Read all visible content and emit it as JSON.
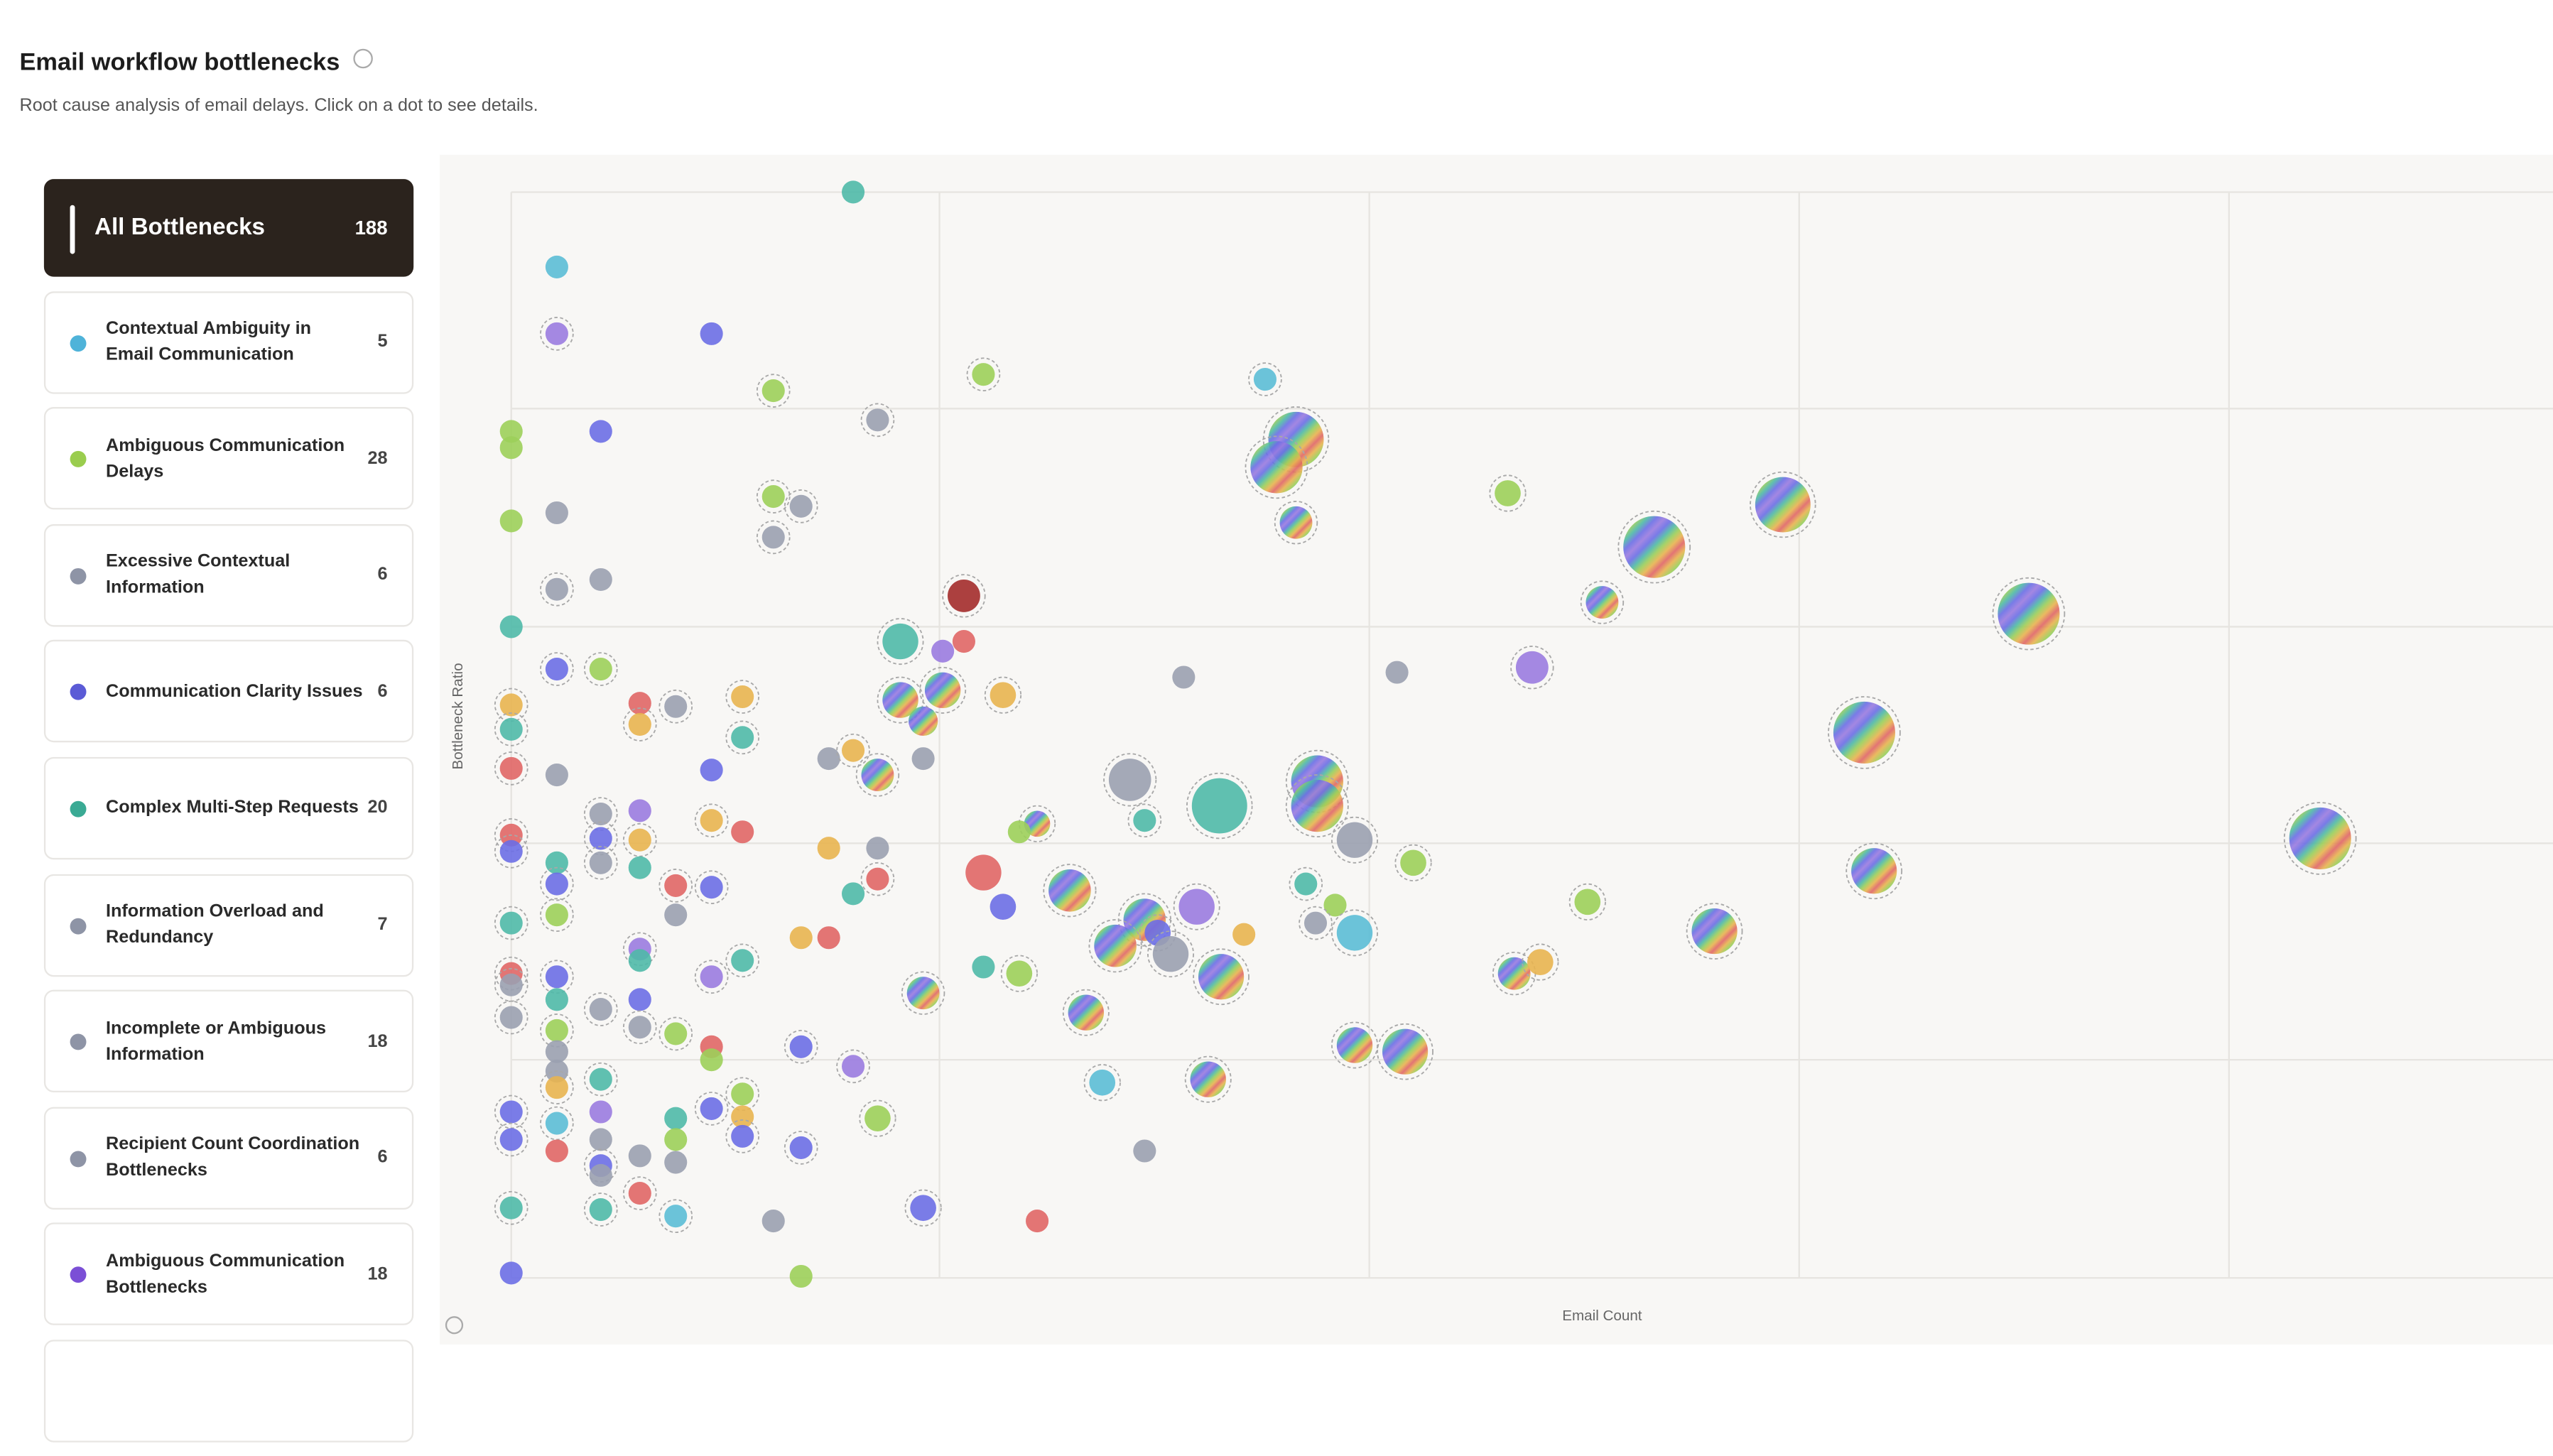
{
  "header": {
    "title": "Email workflow bottlenecks",
    "subtitle": "Root cause analysis of email delays. Click on a dot to see details."
  },
  "sidebar": {
    "selected": {
      "label": "All Bottlenecks",
      "count": 188
    },
    "items": [
      {
        "label": "Contextual Ambiguity in Email Communication",
        "count": 5,
        "color": "#4fb3d9"
      },
      {
        "label": "Ambiguous Communication Delays",
        "count": 28,
        "color": "#9acd4e"
      },
      {
        "label": "Excessive Contextual Information",
        "count": 6,
        "color": "#8e94a6"
      },
      {
        "label": "Communication Clarity Issues",
        "count": 6,
        "color": "#5b5bd6"
      },
      {
        "label": "Complex Multi-Step Requests",
        "count": 20,
        "color": "#3aaa94"
      },
      {
        "label": "Information Overload and Redundancy",
        "count": 7,
        "color": "#8e94a6"
      },
      {
        "label": "Incomplete or Ambiguous Information",
        "count": 18,
        "color": "#8e94a6"
      },
      {
        "label": "Recipient Count Coordination Bottlenecks",
        "count": 6,
        "color": "#8e94a6"
      },
      {
        "label": "Ambiguous Communication Bottlenecks",
        "count": 18,
        "color": "#7b4fd6"
      }
    ]
  },
  "chart_data": {
    "type": "scatter",
    "x_label": "Email Count",
    "y_label": "Bottleneck Ratio",
    "xlim": [
      -44,
      1254
    ],
    "ylim": [
      -41,
      690
    ],
    "xgrid": [
      0,
      263,
      527,
      791,
      1055
    ],
    "ygrid": [
      0,
      134,
      267,
      400,
      534,
      667
    ],
    "x": [
      210,
      28,
      28,
      123,
      161,
      290,
      225,
      463,
      0,
      0,
      55,
      482,
      470,
      0,
      28,
      161,
      178,
      161,
      482,
      612,
      781,
      702,
      28,
      55,
      278,
      0,
      278,
      239,
      265,
      670,
      932,
      28,
      55,
      413,
      544,
      627,
      79,
      101,
      142,
      239,
      265,
      302,
      253,
      0,
      0,
      79,
      142,
      831,
      0,
      28,
      123,
      195,
      210,
      225,
      253,
      380,
      435,
      495,
      495,
      389,
      518,
      554,
      55,
      79,
      0,
      0,
      55,
      79,
      123,
      142,
      195,
      225,
      323,
      312,
      1111,
      837,
      28,
      55,
      79,
      290,
      343,
      0,
      28,
      28,
      101,
      123,
      101,
      210,
      225,
      302,
      389,
      421,
      488,
      506,
      371,
      397,
      405,
      450,
      494,
      518,
      661,
      739,
      178,
      195,
      0,
      0,
      28,
      79,
      79,
      123,
      142,
      253,
      290,
      312,
      436,
      616,
      632,
      28,
      79,
      0,
      28,
      55,
      79,
      101,
      123,
      123,
      178,
      210,
      353,
      518,
      549,
      28,
      28,
      55,
      28,
      363,
      428,
      0,
      28,
      55,
      101,
      123,
      142,
      142,
      225,
      0,
      28,
      55,
      79,
      101,
      101,
      142,
      178,
      389,
      55,
      55,
      79,
      0,
      55,
      101,
      161,
      253,
      323,
      0,
      178
    ],
    "y": [
      667,
      621,
      580,
      580,
      545,
      555,
      527,
      552,
      520,
      510,
      520,
      515,
      498,
      465,
      470,
      480,
      474,
      455,
      464,
      482,
      475,
      449,
      423,
      429,
      419,
      400,
      391,
      391,
      385,
      415,
      408,
      374,
      374,
      369,
      372,
      375,
      353,
      351,
      357,
      355,
      361,
      358,
      342,
      352,
      337,
      340,
      332,
      335,
      313,
      309,
      312,
      319,
      324,
      309,
      319,
      306,
      290,
      305,
      290,
      281,
      269,
      255,
      285,
      287,
      272,
      262,
      270,
      269,
      281,
      274,
      264,
      264,
      279,
      274,
      270,
      250,
      255,
      255,
      252,
      249,
      238,
      218,
      242,
      223,
      241,
      240,
      223,
      236,
      245,
      228,
      220,
      228,
      242,
      229,
      204,
      212,
      199,
      211,
      218,
      212,
      231,
      213,
      209,
      209,
      187,
      180,
      185,
      202,
      195,
      185,
      195,
      175,
      191,
      187,
      185,
      187,
      194,
      171,
      171,
      160,
      152,
      165,
      154,
      150,
      142,
      134,
      142,
      130,
      163,
      143,
      139,
      139,
      127,
      122,
      117,
      120,
      122,
      102,
      95,
      102,
      98,
      104,
      113,
      99,
      98,
      85,
      78,
      85,
      75,
      85,
      71,
      87,
      80,
      78,
      69,
      63,
      52,
      43,
      42,
      38,
      35,
      43,
      35,
      3,
      1
    ],
    "size": [
      7,
      7,
      7,
      7,
      7,
      7,
      7,
      7,
      7,
      7,
      7,
      17,
      16,
      7,
      7,
      7,
      7,
      7,
      10,
      8,
      17,
      19,
      7,
      7,
      10,
      7,
      7,
      11,
      7,
      10,
      19,
      7,
      7,
      7,
      7,
      10,
      7,
      7,
      7,
      11,
      11,
      8,
      9,
      7,
      7,
      7,
      7,
      19,
      7,
      7,
      7,
      7,
      7,
      10,
      7,
      13,
      17,
      16,
      16,
      7,
      11,
      8,
      7,
      7,
      7,
      7,
      7,
      7,
      7,
      7,
      7,
      7,
      8,
      7,
      19,
      14,
      7,
      7,
      7,
      11,
      13,
      7,
      7,
      7,
      7,
      7,
      7,
      7,
      7,
      8,
      13,
      11,
      7,
      7,
      13,
      8,
      11,
      7,
      7,
      11,
      8,
      14,
      7,
      7,
      7,
      7,
      7,
      7,
      7,
      7,
      7,
      10,
      7,
      8,
      14,
      10,
      8,
      7,
      7,
      7,
      7,
      7,
      7,
      7,
      7,
      7,
      7,
      7,
      11,
      11,
      14,
      7,
      7,
      7,
      7,
      8,
      11,
      7,
      7,
      7,
      7,
      7,
      7,
      7,
      8,
      7,
      7,
      7,
      7,
      7,
      7,
      7,
      7,
      7,
      7,
      7,
      7,
      7,
      7,
      7,
      7,
      8,
      7,
      7,
      7
    ],
    "color": [
      "#4fb9a8",
      "#5bbcd6",
      "#9a7be0",
      "#6b6ee6",
      "#9ccf5a",
      "#9ccf5a",
      "#9aa0b0",
      "#5bbcd6",
      "#9ccf5a",
      "#9ccf5a",
      "#6b6ee6",
      "rainbow",
      "rainbow",
      "#9ccf5a",
      "#9aa0b0",
      "#9ccf5a",
      "#9aa0b0",
      "#9aa0b0",
      "rainbow",
      "#9ccf5a",
      "rainbow",
      "rainbow",
      "#9aa0b0",
      "#9aa0b0",
      "#a32b2b",
      "#4fb9a8",
      "#e06666",
      "#4fb9a8",
      "#9a7be0",
      "rainbow",
      "rainbow",
      "#6b6ee6",
      "#9ccf5a",
      "#9aa0b0",
      "#9aa0b0",
      "#9a7be0",
      "#e06666",
      "#9aa0b0",
      "#e8b450",
      "rainbow",
      "rainbow",
      "#e8b450",
      "rainbow",
      "#e8b450",
      "#4fb9a8",
      "#e8b450",
      "#4fb9a8",
      "rainbow",
      "#e06666",
      "#9aa0b0",
      "#6b6ee6",
      "#9aa0b0",
      "#e8b450",
      "rainbow",
      "#9aa0b0",
      "#9aa0b0",
      "#4fb9a8",
      "rainbow",
      "rainbow",
      "#4fb9a8",
      "#9aa0b0",
      "#9ccf5a",
      "#9aa0b0",
      "#9a7be0",
      "#e06666",
      "#6b6ee6",
      "#6b6ee6",
      "#e8b450",
      "#e8b450",
      "#e06666",
      "#e8b450",
      "#9aa0b0",
      "rainbow",
      "#9ccf5a",
      "rainbow",
      "rainbow",
      "#4fb9a8",
      "#9aa0b0",
      "#4fb9a8",
      "#e06666",
      "rainbow",
      "#4fb9a8",
      "#6b6ee6",
      "#9ccf5a",
      "#e06666",
      "#6b6ee6",
      "#9aa0b0",
      "#4fb9a8",
      "#e06666",
      "#6b6ee6",
      "rainbow",
      "#9a7be0",
      "#4fb9a8",
      "#9ccf5a",
      "rainbow",
      "#6b6ee6",
      "#9aa0b0",
      "#e8b450",
      "#9aa0b0",
      "#5bbcd6",
      "#9ccf5a",
      "rainbow",
      "#e8b450",
      "#e06666",
      "#e06666",
      "#9aa0b0",
      "#6b6ee6",
      "#9a7be0",
      "#4fb9a8",
      "#9a7be0",
      "#4fb9a8",
      "rainbow",
      "#4fb9a8",
      "#9ccf5a",
      "rainbow",
      "rainbow",
      "#e8b450",
      "#4fb9a8",
      "#6b6ee6",
      "#9aa0b0",
      "#9ccf5a",
      "#9aa0b0",
      "#9aa0b0",
      "#9ccf5a",
      "#e06666",
      "#9ccf5a",
      "#6b6ee6",
      "#9a7be0",
      "rainbow",
      "rainbow",
      "rainbow",
      "#9aa0b0",
      "#9aa0b0",
      "#4fb9a8",
      "#e8b450",
      "#5bbcd6",
      "rainbow",
      "#6b6ee6",
      "#5bbcd6",
      "#9a7be0",
      "#4fb9a8",
      "#6b6ee6",
      "#9ccf5a",
      "#e8b450",
      "#9ccf5a",
      "#6b6ee6",
      "#e06666",
      "#9aa0b0",
      "#9aa0b0",
      "#9ccf5a",
      "#9aa0b0",
      "#6b6ee6",
      "#6b6ee6",
      "#9aa0b0",
      "#6b6ee6",
      "#9aa0b0",
      "#e06666",
      "#4fb9a8",
      "#4fb9a8",
      "#5bbcd6",
      "#9aa0b0",
      "#6b6ee6",
      "#e06666",
      "#6b6ee6",
      "#9ccf5a"
    ],
    "ring": [
      false,
      false,
      true,
      false,
      true,
      true,
      true,
      true,
      false,
      false,
      false,
      true,
      true,
      false,
      false,
      true,
      true,
      true,
      true,
      true,
      true,
      true,
      true,
      false,
      true,
      false,
      false,
      true,
      false,
      true,
      true,
      true,
      true,
      false,
      false,
      true,
      false,
      true,
      true,
      true,
      true,
      true,
      false,
      true,
      true,
      true,
      true,
      true,
      true,
      false,
      false,
      false,
      true,
      true,
      false,
      true,
      true,
      true,
      true,
      true,
      true,
      true,
      true,
      false,
      true,
      true,
      true,
      true,
      true,
      false,
      false,
      false,
      true,
      false,
      true,
      true,
      false,
      true,
      false,
      false,
      true,
      true,
      true,
      true,
      true,
      true,
      false,
      false,
      true,
      false,
      true,
      true,
      true,
      false,
      true,
      true,
      true,
      false,
      true,
      true,
      true,
      true,
      false,
      false,
      true,
      true,
      true,
      true,
      false,
      true,
      true,
      true,
      false,
      true,
      true,
      true,
      true,
      false,
      false,
      true,
      true,
      true,
      true,
      true,
      false,
      false,
      true,
      true,
      true,
      true,
      true,
      false,
      false,
      true,
      true,
      true,
      true,
      true,
      true,
      false,
      false,
      true,
      true,
      false,
      true,
      true,
      false,
      false,
      false,
      false,
      false,
      true,
      true,
      false,
      true,
      false,
      true,
      true,
      true,
      true,
      false,
      true,
      false,
      false,
      false
    ]
  }
}
